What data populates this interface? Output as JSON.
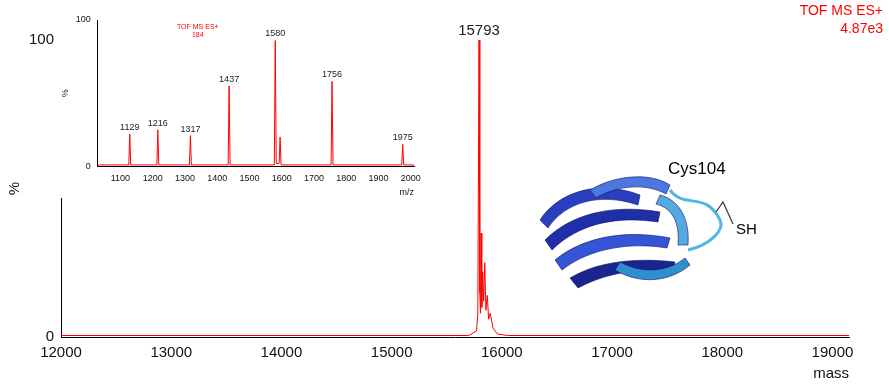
{
  "chart_data": [
    {
      "type": "line",
      "color": "#ff0000",
      "x_label": "mass",
      "y_label": "%",
      "x": [
        12000,
        15700,
        15770,
        15782,
        15793,
        15800,
        15806,
        15812,
        15818,
        15826,
        15835,
        15845,
        15855,
        15868,
        15880,
        15895,
        15920,
        15960,
        16050,
        19150
      ],
      "values": [
        0.5,
        0.5,
        2,
        8,
        100,
        15,
        8,
        35,
        10,
        22,
        12,
        25,
        9,
        14,
        6,
        8,
        3,
        1,
        0.5,
        0.5
      ],
      "xlim": [
        12000,
        19150
      ],
      "xticks": [
        12000,
        13000,
        14000,
        15000,
        16000,
        17000,
        18000,
        19000
      ],
      "ylim": [
        0,
        100
      ],
      "yticks": [
        0,
        100
      ],
      "grid": false,
      "annotations": [
        {
          "text": "15793",
          "x": 15793,
          "y": 100
        }
      ],
      "corner_text": [
        "TOF MS ES+",
        "4.87e3"
      ]
    },
    {
      "type": "line",
      "color": "#ff0000",
      "x_label": "m/z",
      "y_label": "%",
      "x": [
        1030,
        1126,
        1129,
        1132,
        1213,
        1216,
        1219,
        1314,
        1317,
        1320,
        1434,
        1437,
        1440,
        1577,
        1580,
        1583,
        1592,
        1595,
        1598,
        1753,
        1756,
        1759,
        1972,
        1975,
        1978,
        2010
      ],
      "values": [
        1,
        1,
        22,
        1,
        1,
        25,
        1,
        1,
        21,
        1,
        1,
        55,
        1,
        1,
        86,
        2,
        2,
        20,
        1,
        1,
        58,
        1,
        1,
        15,
        1,
        1
      ],
      "xlim": [
        1030,
        2010
      ],
      "xticks": [
        1100,
        1200,
        1300,
        1400,
        1500,
        1600,
        1700,
        1800,
        1900,
        2000
      ],
      "ylim": [
        0,
        100
      ],
      "yticks": [
        0,
        100
      ],
      "grid": false,
      "annotations": [
        {
          "text": "1129",
          "x": 1129,
          "y": 22
        },
        {
          "text": "1216",
          "x": 1216,
          "y": 25
        },
        {
          "text": "1317",
          "x": 1317,
          "y": 21
        },
        {
          "text": "1437",
          "x": 1437,
          "y": 55
        },
        {
          "text": "1580",
          "x": 1580,
          "y": 86
        },
        {
          "text": "1756",
          "x": 1756,
          "y": 58
        },
        {
          "text": "1975",
          "x": 1975,
          "y": 15
        }
      ],
      "corner_text": [
        "TOF MS ES+",
        "184"
      ]
    }
  ],
  "structure": {
    "residue": "Cys104",
    "group": "SH"
  }
}
